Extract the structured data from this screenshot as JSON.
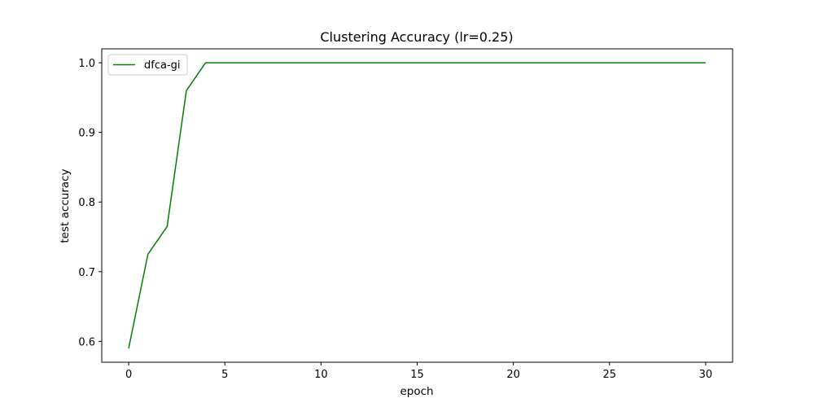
{
  "chart_data": {
    "type": "line",
    "title": "Clustering Accuracy (lr=0.25)",
    "xlabel": "epoch",
    "ylabel": "test accuracy",
    "xlim": [
      -1.4,
      31.4
    ],
    "ylim": [
      0.57,
      1.02
    ],
    "xticks": [
      0,
      5,
      10,
      15,
      20,
      25,
      30
    ],
    "yticks": [
      0.6,
      0.7,
      0.8,
      0.9,
      1.0
    ],
    "ytick_labels": [
      "0.6",
      "0.7",
      "0.8",
      "0.9",
      "1.0"
    ],
    "grid": false,
    "legend_position": "top-left",
    "series": [
      {
        "name": "dfca-gi",
        "color": "#008000",
        "x": [
          0,
          1,
          2,
          3,
          4,
          5,
          6,
          7,
          8,
          9,
          10,
          11,
          12,
          13,
          14,
          15,
          16,
          17,
          18,
          19,
          20,
          21,
          22,
          23,
          24,
          25,
          26,
          27,
          28,
          29,
          30
        ],
        "y": [
          0.59,
          0.725,
          0.765,
          0.96,
          1.0,
          1.0,
          1.0,
          1.0,
          1.0,
          1.0,
          1.0,
          1.0,
          1.0,
          1.0,
          1.0,
          1.0,
          1.0,
          1.0,
          1.0,
          1.0,
          1.0,
          1.0,
          1.0,
          1.0,
          1.0,
          1.0,
          1.0,
          1.0,
          1.0,
          1.0,
          1.0
        ]
      }
    ]
  }
}
